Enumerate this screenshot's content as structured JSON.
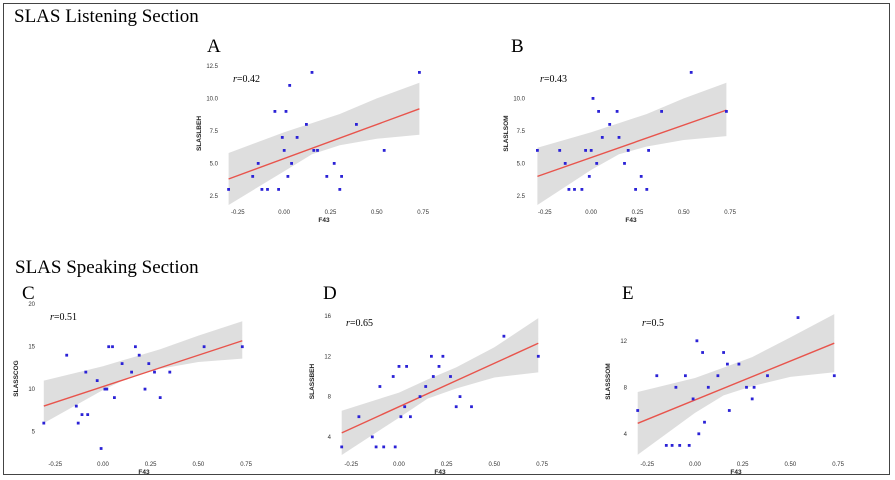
{
  "figure": {
    "sections": [
      {
        "title": "SLAS Listening Section"
      },
      {
        "title": "SLAS Speaking Section"
      }
    ]
  },
  "colors": {
    "points": "#2b22d6",
    "fit_line": "#e8544c",
    "band": "#d3d3d3",
    "frame": "#444444"
  },
  "chart_data": [
    {
      "type": "scatter",
      "panel": "A",
      "r_label": "=0.42",
      "xlabel": "F43",
      "ylabel": "SLASLBEH",
      "xlim": [
        -0.33,
        0.76
      ],
      "ylim": [
        1.8,
        12.8
      ],
      "xticks": [
        -0.25,
        0.0,
        0.25,
        0.5,
        0.75
      ],
      "xtick_labels": [
        "-0.25",
        "0.00",
        "0.25",
        "0.50",
        "0.75"
      ],
      "yticks": [
        2.5,
        5.0,
        7.5,
        10.0,
        12.5
      ],
      "ytick_labels": [
        "2.5",
        "5.0",
        "7.5",
        "10.0",
        "12.5"
      ],
      "points": [
        [
          -0.3,
          3
        ],
        [
          -0.17,
          4
        ],
        [
          -0.14,
          5
        ],
        [
          -0.12,
          3
        ],
        [
          -0.09,
          3
        ],
        [
          -0.05,
          9
        ],
        [
          -0.03,
          3
        ],
        [
          -0.01,
          7
        ],
        [
          0.0,
          6
        ],
        [
          0.01,
          9
        ],
        [
          0.02,
          4
        ],
        [
          0.03,
          11
        ],
        [
          0.04,
          5
        ],
        [
          0.07,
          7
        ],
        [
          0.12,
          8
        ],
        [
          0.15,
          12
        ],
        [
          0.16,
          6
        ],
        [
          0.18,
          6
        ],
        [
          0.23,
          4
        ],
        [
          0.27,
          5
        ],
        [
          0.3,
          3
        ],
        [
          0.31,
          4
        ],
        [
          0.39,
          8
        ],
        [
          0.54,
          6
        ],
        [
          0.73,
          12
        ]
      ],
      "fit": {
        "x": [
          -0.3,
          0.73
        ],
        "y": [
          3.8,
          9.2
        ]
      },
      "band": {
        "x": [
          -0.3,
          0.0,
          0.15,
          0.3,
          0.5,
          0.73
        ],
        "lower": [
          1.8,
          4.4,
          5.7,
          6.4,
          6.9,
          7.2
        ],
        "upper": [
          5.8,
          7.4,
          8.1,
          8.8,
          10.0,
          11.2
        ]
      }
    },
    {
      "type": "scatter",
      "panel": "B",
      "r_label": "=0.43",
      "xlabel": "F43",
      "ylabel": "SLASLSOM",
      "xlim": [
        -0.33,
        0.76
      ],
      "ylim": [
        1.8,
        12.8
      ],
      "xticks": [
        -0.25,
        0.0,
        0.25,
        0.5,
        0.75
      ],
      "xtick_labels": [
        "-0.25",
        "0.00",
        "0.25",
        "0.50",
        "0.75"
      ],
      "yticks": [
        2.5,
        5.0,
        7.5,
        10.0
      ],
      "ytick_labels": [
        "2.5",
        "5.0",
        "7.5",
        "10.0"
      ],
      "points": [
        [
          -0.29,
          6
        ],
        [
          -0.17,
          6
        ],
        [
          -0.14,
          5
        ],
        [
          -0.12,
          3
        ],
        [
          -0.09,
          3
        ],
        [
          -0.05,
          3
        ],
        [
          -0.03,
          6
        ],
        [
          -0.01,
          4
        ],
        [
          0.0,
          6
        ],
        [
          0.01,
          10
        ],
        [
          0.03,
          5
        ],
        [
          0.04,
          9
        ],
        [
          0.06,
          7
        ],
        [
          0.1,
          8
        ],
        [
          0.14,
          9
        ],
        [
          0.15,
          7
        ],
        [
          0.18,
          5
        ],
        [
          0.2,
          6
        ],
        [
          0.24,
          3
        ],
        [
          0.27,
          4
        ],
        [
          0.3,
          3
        ],
        [
          0.31,
          6
        ],
        [
          0.38,
          9
        ],
        [
          0.54,
          12
        ],
        [
          0.73,
          9
        ]
      ],
      "fit": {
        "x": [
          -0.29,
          0.73
        ],
        "y": [
          4.0,
          9.1
        ]
      },
      "band": {
        "x": [
          -0.29,
          0.0,
          0.15,
          0.3,
          0.5,
          0.73
        ],
        "lower": [
          1.8,
          4.5,
          5.7,
          6.3,
          6.8,
          7.1
        ],
        "upper": [
          6.2,
          7.4,
          8.1,
          8.8,
          10.0,
          11.2
        ]
      }
    },
    {
      "type": "scatter",
      "panel": "C",
      "r_label": "=0.51",
      "xlabel": "F43",
      "ylabel": "SLASSCOG",
      "xlim": [
        -0.33,
        0.76
      ],
      "ylim": [
        2,
        20.5
      ],
      "xticks": [
        -0.25,
        0.0,
        0.25,
        0.5,
        0.75
      ],
      "xtick_labels": [
        "-0.25",
        "0.00",
        "0.25",
        "0.50",
        "0.75"
      ],
      "yticks": [
        5,
        10,
        15,
        20
      ],
      "ytick_labels": [
        "5",
        "10",
        "15",
        "20"
      ],
      "points": [
        [
          -0.31,
          6
        ],
        [
          -0.19,
          14
        ],
        [
          -0.14,
          8
        ],
        [
          -0.13,
          6
        ],
        [
          -0.11,
          7
        ],
        [
          -0.09,
          12
        ],
        [
          -0.08,
          7
        ],
        [
          -0.03,
          11
        ],
        [
          -0.01,
          3
        ],
        [
          0.01,
          10
        ],
        [
          0.02,
          10
        ],
        [
          0.03,
          15
        ],
        [
          0.05,
          15
        ],
        [
          0.06,
          9
        ],
        [
          0.1,
          13
        ],
        [
          0.15,
          12
        ],
        [
          0.17,
          15
        ],
        [
          0.19,
          14
        ],
        [
          0.22,
          10
        ],
        [
          0.24,
          13
        ],
        [
          0.27,
          12
        ],
        [
          0.3,
          9
        ],
        [
          0.35,
          12
        ],
        [
          0.53,
          15
        ],
        [
          0.73,
          15
        ]
      ],
      "fit": {
        "x": [
          -0.31,
          0.73
        ],
        "y": [
          8.0,
          15.7
        ]
      },
      "band": {
        "x": [
          -0.31,
          0.0,
          0.15,
          0.3,
          0.5,
          0.73
        ],
        "lower": [
          6.0,
          9.9,
          11.5,
          12.4,
          13.2,
          13.6
        ],
        "upper": [
          11.0,
          12.7,
          13.7,
          14.7,
          16.3,
          18.0
        ]
      }
    },
    {
      "type": "scatter",
      "panel": "D",
      "r_label": "=0.65",
      "xlabel": "F43",
      "ylabel": "SLASSBEH",
      "xlim": [
        -0.33,
        0.76
      ],
      "ylim": [
        2,
        17
      ],
      "xticks": [
        -0.25,
        0.0,
        0.25,
        0.5,
        0.75
      ],
      "xtick_labels": [
        "-0.25",
        "0.00",
        "0.25",
        "0.50",
        "0.75"
      ],
      "yticks": [
        4,
        8,
        12,
        16
      ],
      "ytick_labels": [
        "4",
        "8",
        "12",
        "16"
      ],
      "points": [
        [
          -0.3,
          3
        ],
        [
          -0.21,
          6
        ],
        [
          -0.14,
          4
        ],
        [
          -0.12,
          3
        ],
        [
          -0.1,
          9
        ],
        [
          -0.08,
          3
        ],
        [
          -0.03,
          10
        ],
        [
          -0.02,
          3
        ],
        [
          0.0,
          11
        ],
        [
          0.01,
          6
        ],
        [
          0.03,
          7
        ],
        [
          0.04,
          11
        ],
        [
          0.06,
          6
        ],
        [
          0.11,
          8
        ],
        [
          0.14,
          9
        ],
        [
          0.17,
          12
        ],
        [
          0.18,
          10
        ],
        [
          0.21,
          11
        ],
        [
          0.23,
          12
        ],
        [
          0.27,
          10
        ],
        [
          0.3,
          7
        ],
        [
          0.32,
          8
        ],
        [
          0.38,
          7
        ],
        [
          0.55,
          14
        ],
        [
          0.73,
          12
        ]
      ],
      "fit": {
        "x": [
          -0.3,
          0.73
        ],
        "y": [
          4.4,
          13.3
        ]
      },
      "band": {
        "x": [
          -0.3,
          0.0,
          0.15,
          0.3,
          0.5,
          0.73
        ],
        "lower": [
          2.2,
          5.9,
          7.8,
          8.8,
          9.9,
          10.4
        ],
        "upper": [
          6.6,
          8.4,
          9.7,
          10.9,
          12.9,
          15.8
        ]
      }
    },
    {
      "type": "scatter",
      "panel": "E",
      "r_label": "=0.5",
      "xlabel": "F43",
      "ylabel": "SLASSSOM",
      "xlim": [
        -0.33,
        0.76
      ],
      "ylim": [
        2,
        15
      ],
      "xticks": [
        -0.25,
        0.0,
        0.25,
        0.5,
        0.75
      ],
      "xtick_labels": [
        "-0.25",
        "0.00",
        "0.25",
        "0.50",
        "0.75"
      ],
      "yticks": [
        4,
        8,
        12
      ],
      "ytick_labels": [
        "4",
        "8",
        "12"
      ],
      "points": [
        [
          -0.3,
          6
        ],
        [
          -0.2,
          9
        ],
        [
          -0.15,
          3
        ],
        [
          -0.12,
          3
        ],
        [
          -0.1,
          8
        ],
        [
          -0.08,
          3
        ],
        [
          -0.05,
          9
        ],
        [
          -0.03,
          3
        ],
        [
          -0.01,
          7
        ],
        [
          0.01,
          12
        ],
        [
          0.02,
          4
        ],
        [
          0.04,
          11
        ],
        [
          0.05,
          5
        ],
        [
          0.07,
          8
        ],
        [
          0.12,
          9
        ],
        [
          0.15,
          11
        ],
        [
          0.17,
          10
        ],
        [
          0.18,
          6
        ],
        [
          0.23,
          10
        ],
        [
          0.27,
          8
        ],
        [
          0.3,
          7
        ],
        [
          0.31,
          8
        ],
        [
          0.38,
          9
        ],
        [
          0.54,
          14
        ],
        [
          0.73,
          9
        ]
      ],
      "fit": {
        "x": [
          -0.3,
          0.73
        ],
        "y": [
          4.9,
          11.8
        ]
      },
      "band": {
        "x": [
          -0.3,
          0.0,
          0.15,
          0.3,
          0.5,
          0.73
        ],
        "lower": [
          2.2,
          5.8,
          7.3,
          8.1,
          8.9,
          9.3
        ],
        "upper": [
          7.6,
          8.8,
          9.7,
          10.6,
          12.3,
          14.3
        ]
      }
    }
  ]
}
